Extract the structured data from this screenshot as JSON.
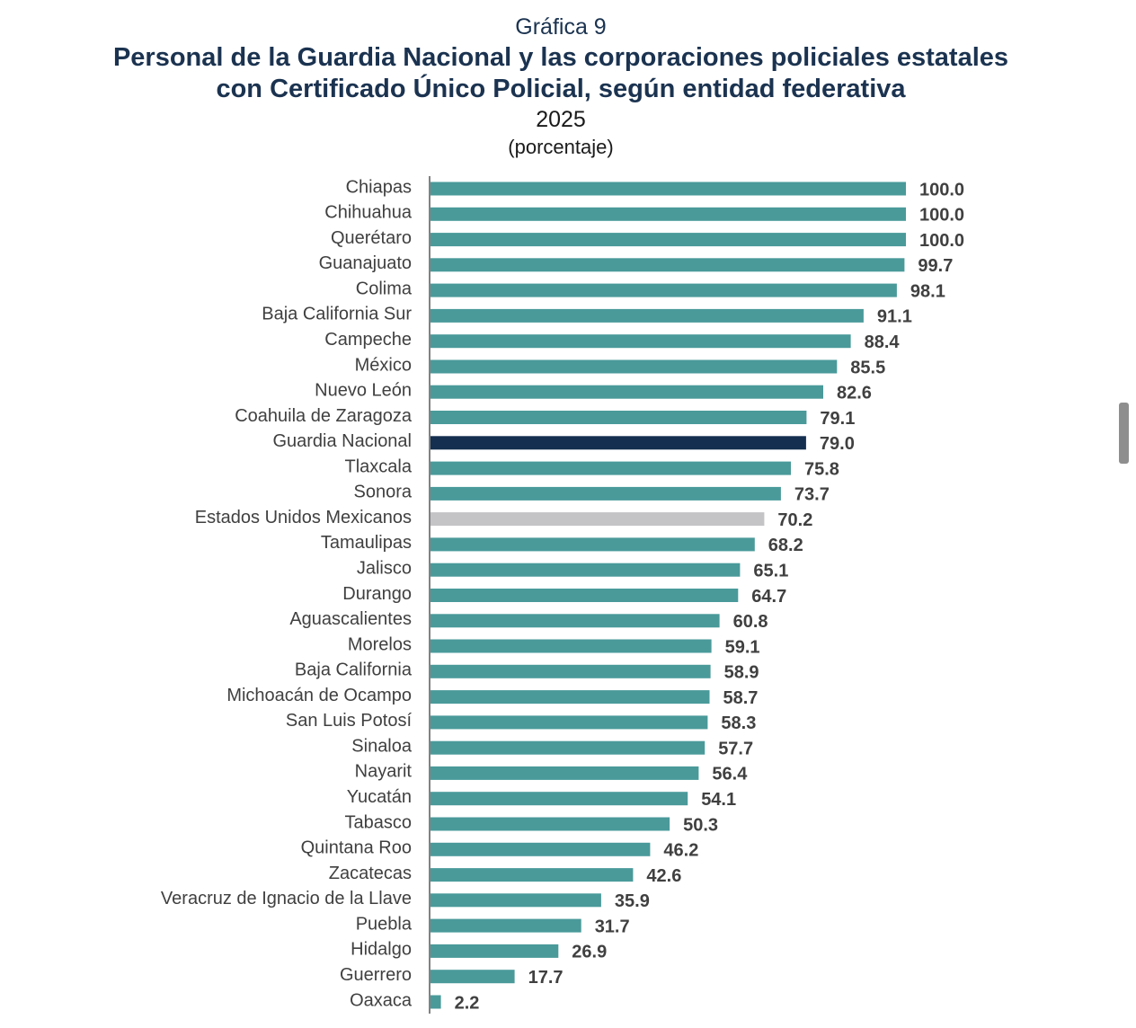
{
  "header": {
    "chart_label": "Gráfica 9",
    "title_line1": "Personal de la Guardia Nacional y las corporaciones policiales estatales",
    "title_line2": "con Certificado Único Policial, según entidad federativa",
    "year": "2025",
    "unit": "(porcentaje)"
  },
  "colors": {
    "default_bar": "#4a9a9a",
    "guardia_nacional": "#142f4f",
    "national_total": "#c4c4c6",
    "axis": "#595959"
  },
  "chart_data": {
    "type": "bar",
    "orientation": "horizontal",
    "title": "Personal de la Guardia Nacional y las corporaciones policiales estatales con Certificado Único Policial, según entidad federativa",
    "subtitle": "2025",
    "unit": "(porcentaje)",
    "xlim": [
      0,
      100
    ],
    "grid": false,
    "categories": [
      "Chiapas",
      "Chihuahua",
      "Querétaro",
      "Guanajuato",
      "Colima",
      "Baja California Sur",
      "Campeche",
      "México",
      "Nuevo León",
      "Coahuila de Zaragoza",
      "Guardia Nacional",
      "Tlaxcala",
      "Sonora",
      "Estados Unidos Mexicanos",
      "Tamaulipas",
      "Jalisco",
      "Durango",
      "Aguascalientes",
      "Morelos",
      "Baja California",
      "Michoacán de Ocampo",
      "San Luis Potosí",
      "Sinaloa",
      "Nayarit",
      "Yucatán",
      "Tabasco",
      "Quintana Roo",
      "Zacatecas",
      "Veracruz de Ignacio de la Llave",
      "Puebla",
      "Hidalgo",
      "Guerrero",
      "Oaxaca"
    ],
    "values": [
      100.0,
      100.0,
      100.0,
      99.7,
      98.1,
      91.1,
      88.4,
      85.5,
      82.6,
      79.1,
      79.0,
      75.8,
      73.7,
      70.2,
      68.2,
      65.1,
      64.7,
      60.8,
      59.1,
      58.9,
      58.7,
      58.3,
      57.7,
      56.4,
      54.1,
      50.3,
      46.2,
      42.6,
      35.9,
      31.7,
      26.9,
      17.7,
      2.2
    ],
    "value_labels": [
      "100.0",
      "100.0",
      "100.0",
      "99.7",
      "98.1",
      "91.1",
      "88.4",
      "85.5",
      "82.6",
      "79.1",
      "79.0",
      "75.8",
      "73.7",
      "70.2",
      "68.2",
      "65.1",
      "64.7",
      "60.8",
      "59.1",
      "58.9",
      "58.7",
      "58.3",
      "57.7",
      "56.4",
      "54.1",
      "50.3",
      "46.2",
      "42.6",
      "35.9",
      "31.7",
      "26.9",
      "17.7",
      "2.2"
    ],
    "highlight": {
      "Guardia Nacional": "guardia_nacional",
      "Estados Unidos Mexicanos": "national_total"
    }
  }
}
